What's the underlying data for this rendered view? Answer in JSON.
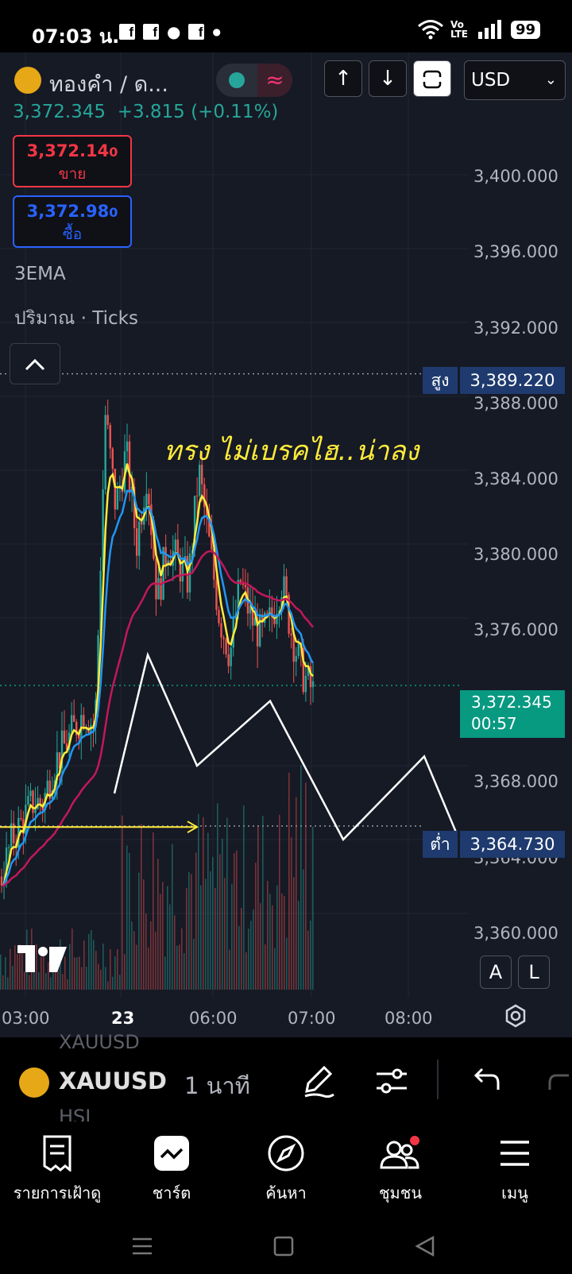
{
  "status_bar": {
    "time": "07:03 น.",
    "notif_icons": [
      "facebook-icon",
      "facebook-icon",
      "messenger-icon",
      "facebook-icon",
      "dot-icon"
    ],
    "network": "Vo LTE",
    "battery": "99"
  },
  "header": {
    "symbol_title": "ทองคำ / ด...",
    "up_arrow": "↑",
    "down_arrow": "↓",
    "currency": "USD",
    "wave_symbol": "≈"
  },
  "quote": {
    "last_price": "3,372.345",
    "change": "+3.815 (+0.11%)",
    "sell_price": "3,372.14",
    "sell_price_small": "0",
    "sell_label": "ขาย",
    "buy_price": "3,372.98",
    "buy_price_small": "0",
    "buy_label": "ซื้อ"
  },
  "indicators": [
    "3EMA",
    "ปริมาณ · Ticks"
  ],
  "collapse_glyph": "^",
  "chart_data": {
    "type": "line",
    "symbol": "XAUUSD",
    "interval": "1 นาที",
    "y_axis_ticks": [
      "3,400.000",
      "3,396.000",
      "3,392.000",
      "3,388.000",
      "3,384.000",
      "3,380.000",
      "3,376.000",
      "3,368.000",
      "3,364.000",
      "3,360.000"
    ],
    "y_range": [
      3358,
      3402
    ],
    "x_axis_ticks": [
      "03:00",
      "23",
      "06:00",
      "07:00",
      "08:00"
    ],
    "high_label": "สูง",
    "high_value": "3,389.220",
    "low_label": "ต่ำ",
    "low_value": "3,364.730",
    "current_price": "3,372.345",
    "countdown": "00:57",
    "annotation": "ทรง  ไม่เบรคไฮ..น่าลง",
    "scale_buttons": [
      "A",
      "L"
    ],
    "series_colors": {
      "ema_fast": "#ffeb3b",
      "ema_mid": "#2196f3",
      "ema_slow": "#c2185b",
      "up": "#26a69a",
      "down": "#ef5350",
      "projection": "#ffffff",
      "arrow": "#ffeb3b"
    },
    "price_path": [
      3362,
      3364,
      3365,
      3366,
      3366,
      3368,
      3369,
      3370,
      3371,
      3370,
      3387,
      3382,
      3385,
      3380,
      3384,
      3377,
      3380,
      3379,
      3378,
      3384,
      3380,
      3376,
      3374,
      3378,
      3376,
      3375,
      3376,
      3378,
      3375,
      3373,
      3372
    ]
  },
  "toolbar": {
    "symbol": "XAUUSD",
    "ghost_above": "XAUUSD",
    "ghost_below": "HSI",
    "interval": "1 นาที"
  },
  "bottom_nav": [
    {
      "label": "รายการเฝ้าดู",
      "icon": "watchlist-icon"
    },
    {
      "label": "ชาร์ต",
      "icon": "chart-icon"
    },
    {
      "label": "ค้นหา",
      "icon": "compass-icon"
    },
    {
      "label": "ชุมชน",
      "icon": "community-icon"
    },
    {
      "label": "เมนู",
      "icon": "menu-icon"
    }
  ]
}
